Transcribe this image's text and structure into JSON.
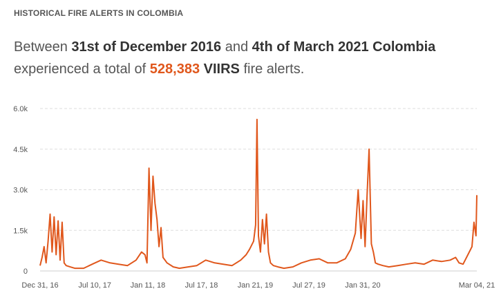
{
  "header": {
    "kicker": "HISTORICAL FIRE ALERTS IN COLOMBIA"
  },
  "summary": {
    "part1": "Between ",
    "start_date": "31st of December 2016",
    "part2": " and ",
    "end_date": "4th of March 2021 Colombia",
    "part3": " experienced a total of ",
    "total": "528,383",
    "part4": " ",
    "dataset": "VIIRS",
    "part5": " fire alerts."
  },
  "colors": {
    "series": "#e0571c",
    "accent": "#e0571c"
  },
  "chart_data": {
    "type": "line",
    "title": "",
    "xlabel": "",
    "ylabel": "",
    "ylim": [
      0,
      6000
    ],
    "grid": true,
    "y_ticks": [
      0,
      1500,
      3000,
      4500,
      6000
    ],
    "y_tick_labels": [
      "0",
      "1.5k",
      "3.0k",
      "4.5k",
      "6.0k"
    ],
    "x_ticks": [
      "2016-12-31",
      "2017-07-10",
      "2018-01-11",
      "2018-07-17",
      "2019-01-21",
      "2019-07-27",
      "2020-01-31",
      "2021-03-04"
    ],
    "x_tick_labels": [
      "Dec 31, 16",
      "Jul 10, 17",
      "Jan 11, 18",
      "Jul 17, 18",
      "Jan 21, 19",
      "Jul 27, 19",
      "Jan 31, 20",
      "Mar 04, 21"
    ],
    "xlim": [
      "2016-12-31",
      "2021-03-04"
    ],
    "series": [
      {
        "x": [
          "2016-12-31",
          "2017-01-07",
          "2017-01-14",
          "2017-01-21",
          "2017-01-28",
          "2017-02-04",
          "2017-02-11",
          "2017-02-18",
          "2017-02-25",
          "2017-03-04",
          "2017-03-11",
          "2017-03-18",
          "2017-03-25",
          "2017-04-01",
          "2017-04-15",
          "2017-05-01",
          "2017-06-01",
          "2017-07-01",
          "2017-08-01",
          "2017-09-01",
          "2017-10-01",
          "2017-11-01",
          "2017-12-01",
          "2017-12-20",
          "2018-01-01",
          "2018-01-08",
          "2018-01-15",
          "2018-01-22",
          "2018-01-29",
          "2018-02-05",
          "2018-02-12",
          "2018-02-19",
          "2018-02-26",
          "2018-03-05",
          "2018-03-19",
          "2018-04-10",
          "2018-05-01",
          "2018-06-01",
          "2018-07-01",
          "2018-08-01",
          "2018-09-01",
          "2018-10-01",
          "2018-11-01",
          "2018-12-01",
          "2018-12-20",
          "2019-01-01",
          "2019-01-15",
          "2019-01-22",
          "2019-01-27",
          "2019-02-01",
          "2019-02-08",
          "2019-02-15",
          "2019-02-22",
          "2019-03-01",
          "2019-03-08",
          "2019-03-15",
          "2019-03-25",
          "2019-04-10",
          "2019-05-01",
          "2019-06-01",
          "2019-07-01",
          "2019-08-01",
          "2019-09-01",
          "2019-10-01",
          "2019-11-01",
          "2019-12-01",
          "2019-12-20",
          "2020-01-05",
          "2020-01-15",
          "2020-01-25",
          "2020-02-01",
          "2020-02-08",
          "2020-02-15",
          "2020-02-22",
          "2020-03-01",
          "2020-03-08",
          "2020-03-15",
          "2020-03-25",
          "2020-04-10",
          "2020-05-01",
          "2020-06-01",
          "2020-07-01",
          "2020-08-01",
          "2020-09-01",
          "2020-10-01",
          "2020-11-01",
          "2020-12-01",
          "2020-12-20",
          "2021-01-01",
          "2021-01-15",
          "2021-02-01",
          "2021-02-15",
          "2021-02-22",
          "2021-03-01",
          "2021-03-04"
        ],
        "y": [
          200,
          500,
          900,
          300,
          1100,
          2100,
          700,
          2000,
          600,
          1850,
          400,
          1800,
          300,
          200,
          150,
          100,
          100,
          250,
          400,
          300,
          250,
          200,
          400,
          700,
          600,
          300,
          3800,
          1500,
          3500,
          2500,
          1900,
          900,
          1600,
          500,
          300,
          150,
          100,
          150,
          200,
          400,
          300,
          250,
          200,
          400,
          600,
          800,
          1100,
          1700,
          5600,
          1300,
          700,
          1900,
          1000,
          2100,
          700,
          300,
          200,
          150,
          100,
          150,
          300,
          400,
          450,
          300,
          300,
          450,
          800,
          1400,
          3000,
          1200,
          2600,
          900,
          2800,
          4500,
          1000,
          700,
          300,
          250,
          200,
          150,
          200,
          250,
          300,
          250,
          400,
          350,
          400,
          500,
          300,
          250,
          600,
          900,
          1800,
          1300,
          2800
        ],
        "name": ""
      }
    ]
  }
}
